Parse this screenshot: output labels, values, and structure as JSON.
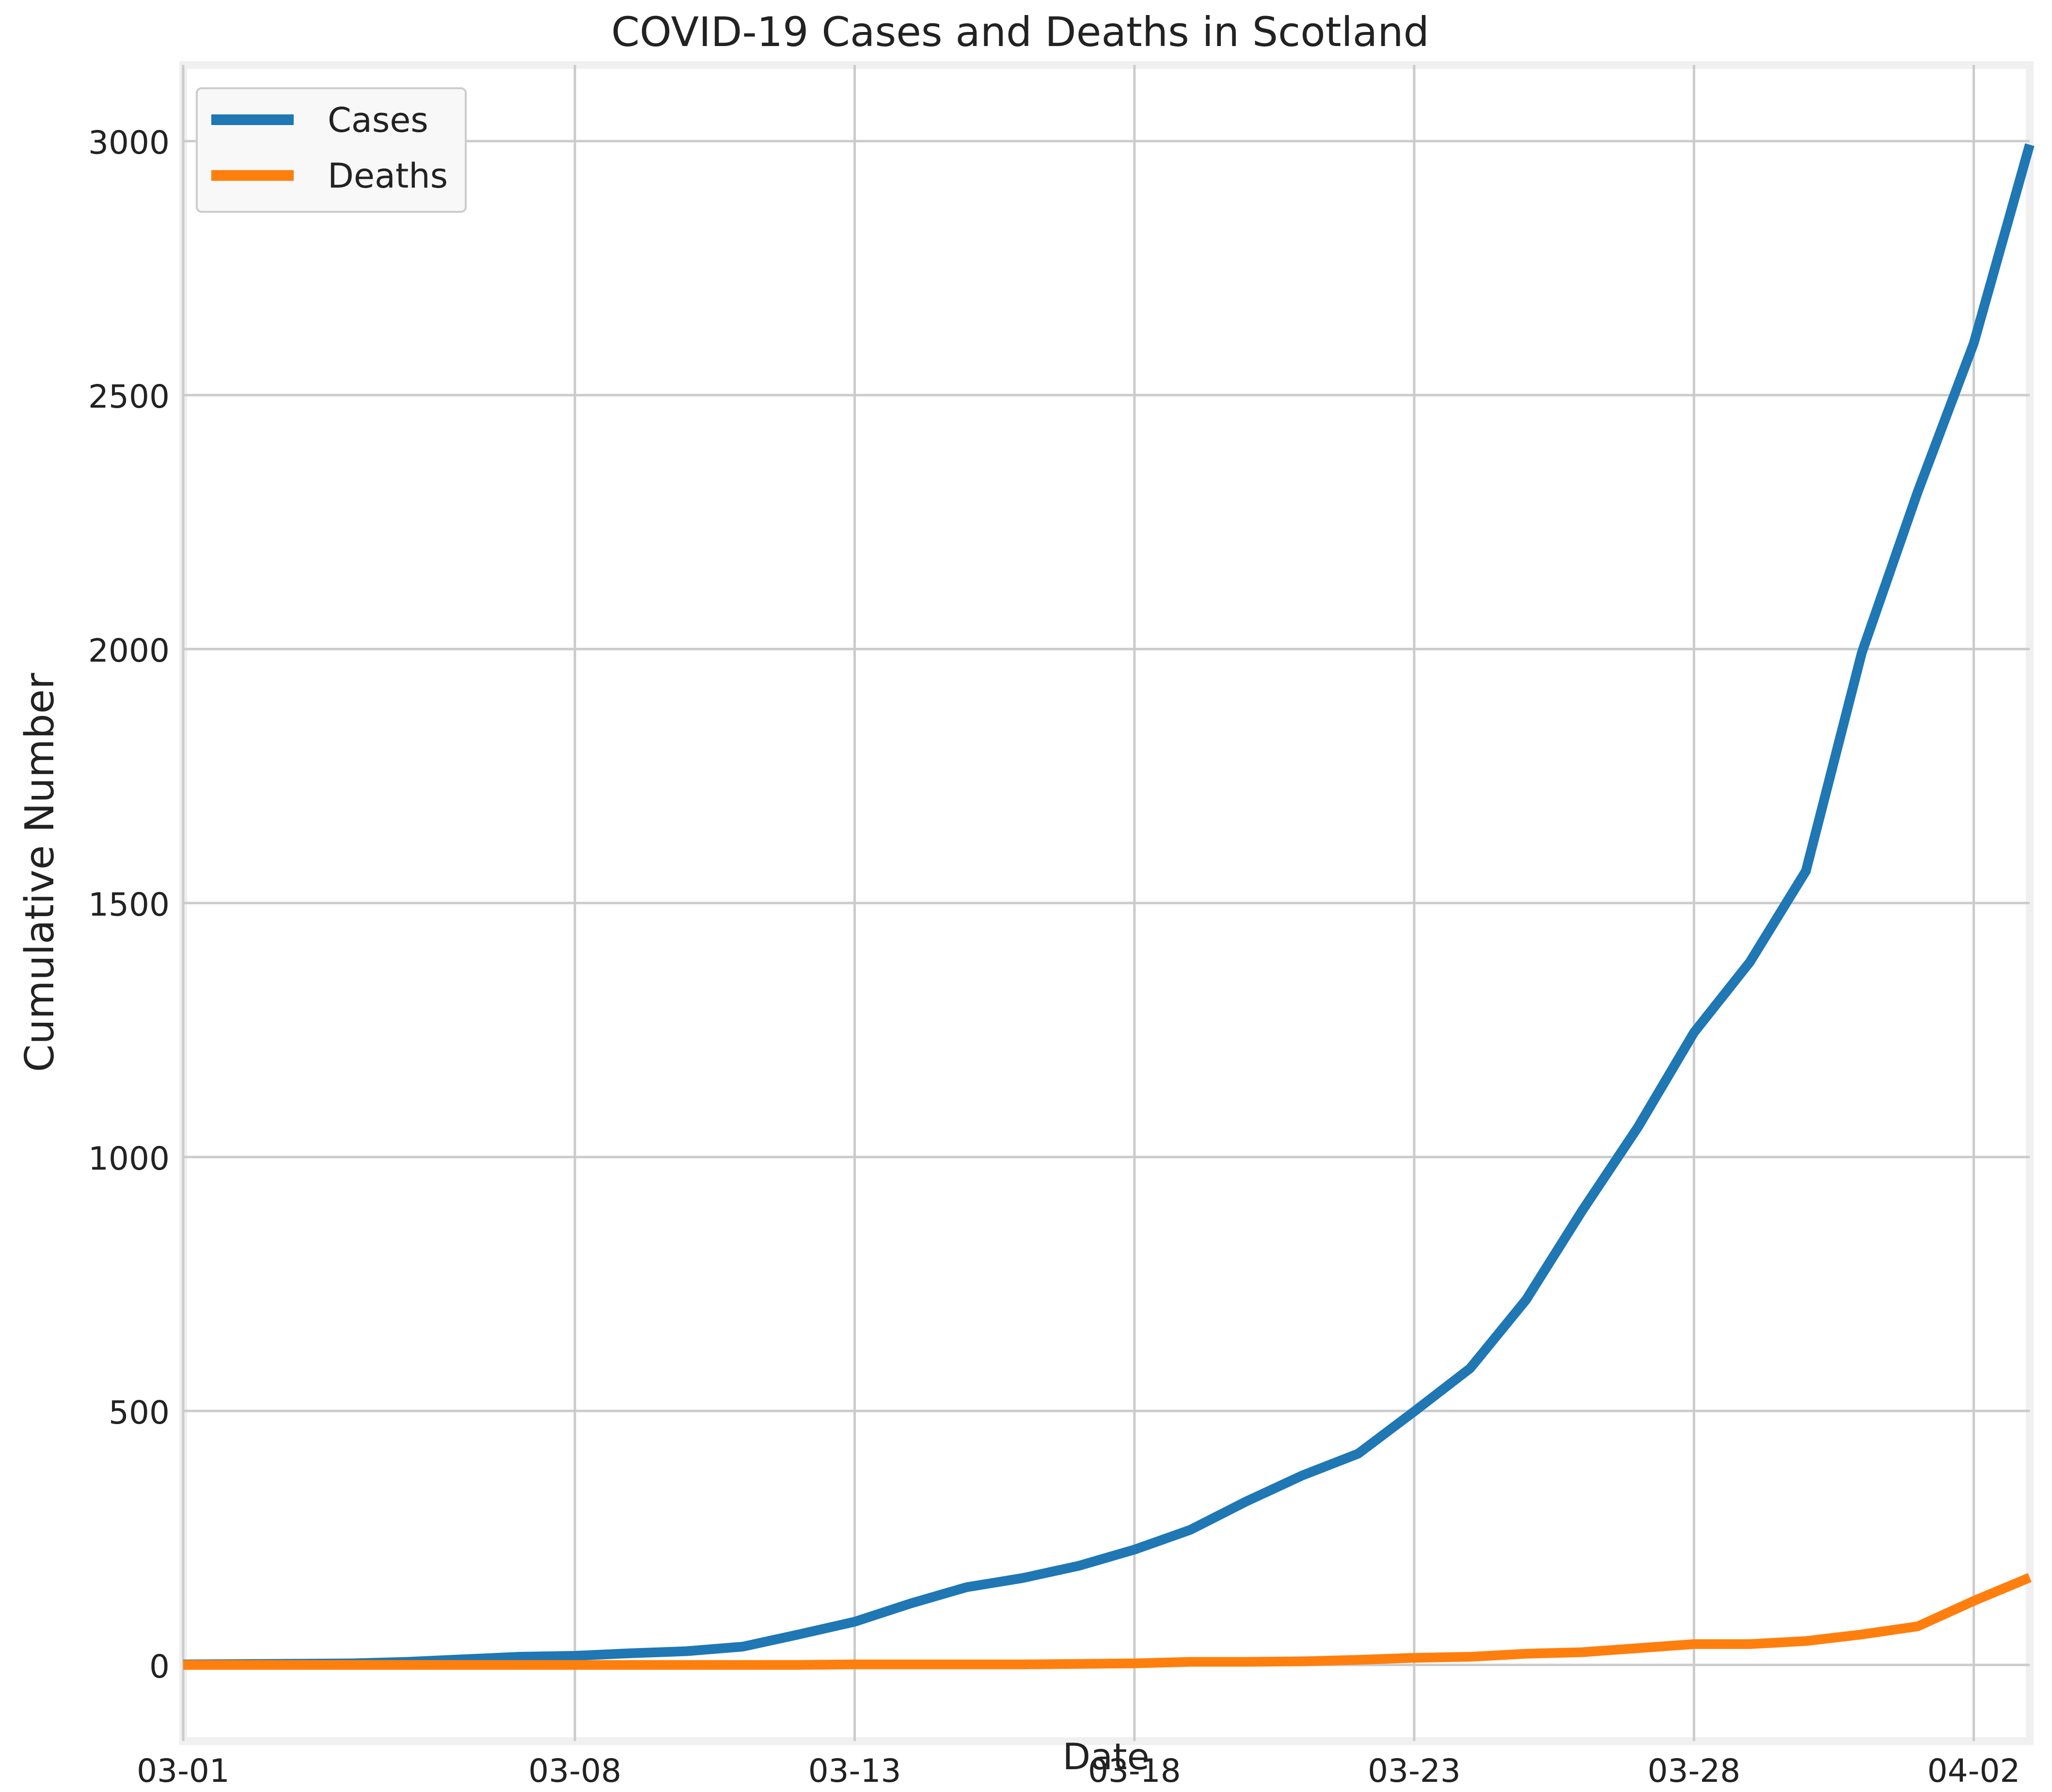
{
  "chart_data": {
    "type": "line",
    "title": "COVID-19 Cases and Deaths in Scotland",
    "xlabel": "Date",
    "ylabel": "Cumulative Number",
    "x_tick_labels": [
      "03-01",
      "03-08",
      "03-13",
      "03-18",
      "03-23",
      "03-28",
      "04-02"
    ],
    "y_ticks": [
      0,
      500,
      1000,
      1500,
      2000,
      2500,
      3000
    ],
    "ylim": [
      -150,
      3150
    ],
    "grid": true,
    "legend_position": "top-left",
    "series": [
      {
        "name": "Cases",
        "color": "#1f77b4",
        "points": [
          [
            "03-01",
            1
          ],
          [
            "03-04",
            3
          ],
          [
            "03-05",
            6
          ],
          [
            "03-06",
            11
          ],
          [
            "03-07",
            16
          ],
          [
            "03-08",
            18
          ],
          [
            "03-09",
            23
          ],
          [
            "03-10",
            27
          ],
          [
            "03-11",
            36
          ],
          [
            "03-12",
            60
          ],
          [
            "03-13",
            85
          ],
          [
            "03-14",
            121
          ],
          [
            "03-15",
            153
          ],
          [
            "03-16",
            171
          ],
          [
            "03-17",
            195
          ],
          [
            "03-18",
            227
          ],
          [
            "03-19",
            266
          ],
          [
            "03-20",
            322
          ],
          [
            "03-21",
            373
          ],
          [
            "03-22",
            416
          ],
          [
            "03-23",
            499
          ],
          [
            "03-24",
            584
          ],
          [
            "03-25",
            719
          ],
          [
            "03-26",
            894
          ],
          [
            "03-27",
            1059
          ],
          [
            "03-28",
            1245
          ],
          [
            "03-29",
            1384
          ],
          [
            "03-30",
            1563
          ],
          [
            "03-31",
            1993
          ],
          [
            "04-01",
            2310
          ],
          [
            "04-02",
            2602
          ],
          [
            "04-03",
            2993
          ]
        ]
      },
      {
        "name": "Deaths",
        "color": "#ff7f0e",
        "points": [
          [
            "03-01",
            0
          ],
          [
            "03-04",
            0
          ],
          [
            "03-05",
            0
          ],
          [
            "03-06",
            0
          ],
          [
            "03-07",
            0
          ],
          [
            "03-08",
            0
          ],
          [
            "03-09",
            0
          ],
          [
            "03-10",
            0
          ],
          [
            "03-11",
            0
          ],
          [
            "03-12",
            0
          ],
          [
            "03-13",
            1
          ],
          [
            "03-14",
            1
          ],
          [
            "03-15",
            1
          ],
          [
            "03-16",
            1
          ],
          [
            "03-17",
            2
          ],
          [
            "03-18",
            3
          ],
          [
            "03-19",
            6
          ],
          [
            "03-20",
            6
          ],
          [
            "03-21",
            7
          ],
          [
            "03-22",
            10
          ],
          [
            "03-23",
            14
          ],
          [
            "03-24",
            16
          ],
          [
            "03-25",
            22
          ],
          [
            "03-26",
            25
          ],
          [
            "03-27",
            33
          ],
          [
            "03-28",
            41
          ],
          [
            "03-29",
            41
          ],
          [
            "03-30",
            47
          ],
          [
            "03-31",
            60
          ],
          [
            "04-01",
            76
          ],
          [
            "04-02",
            126
          ],
          [
            "04-03",
            172
          ]
        ]
      }
    ]
  }
}
